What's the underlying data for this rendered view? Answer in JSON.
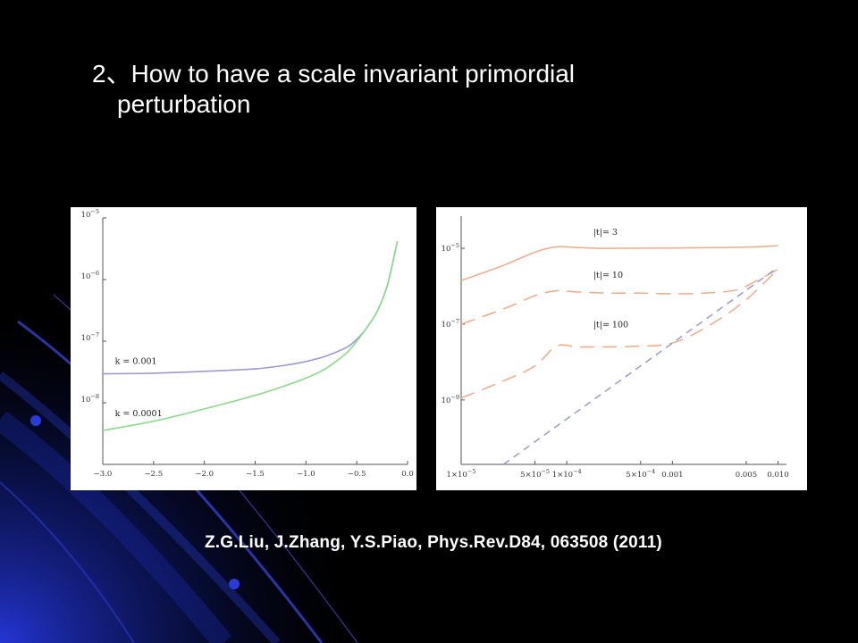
{
  "slide": {
    "title_line1": "2、How to have a scale invariant primordial",
    "title_line2": "perturbation",
    "reference": "Z.G.Liu, J.Zhang, Y.S.Piao, Phys.Rev.D84, 063508 (2011)"
  },
  "colors": {
    "background": "#000000",
    "decor_blue": "#1f2fd8",
    "text": "#ffffff"
  },
  "chart_data": [
    {
      "type": "line",
      "title": "",
      "xlabel": "",
      "ylabel": "",
      "xlim": [
        -3.0,
        0.0
      ],
      "ylim_log10": [
        -9.0,
        -5.0
      ],
      "y_scale": "log",
      "x_ticks": [
        -3.0,
        -2.5,
        -2.0,
        -1.5,
        -1.0,
        -0.5,
        0.0
      ],
      "x_tick_labels": [
        "−3.0",
        "−2.5",
        "−2.0",
        "−1.5",
        "−1.0",
        "−0.5",
        "0.0"
      ],
      "y_ticks_log10": [
        -8,
        -7,
        -6,
        -5
      ],
      "y_tick_labels": [
        "10",
        "10",
        "10",
        "10"
      ],
      "y_tick_exponents": [
        "−8",
        "−7",
        "−6",
        "−5"
      ],
      "series": [
        {
          "name": "k = 0.001",
          "color": "#9a9ad0",
          "dash": "solid",
          "x": [
            -3.0,
            -2.5,
            -2.0,
            -1.5,
            -1.2,
            -1.0,
            -0.8,
            -0.6,
            -0.5,
            -0.4,
            -0.3,
            -0.2,
            -0.1
          ],
          "y_log10": [
            -7.53,
            -7.52,
            -7.49,
            -7.45,
            -7.39,
            -7.33,
            -7.24,
            -7.1,
            -6.97,
            -6.78,
            -6.52,
            -6.1,
            -5.38
          ]
        },
        {
          "name": "k = 0.0001",
          "color": "#88dd88",
          "dash": "solid",
          "x": [
            -3.0,
            -2.5,
            -2.0,
            -1.5,
            -1.2,
            -1.0,
            -0.8,
            -0.6,
            -0.5,
            -0.4,
            -0.3,
            -0.2,
            -0.1
          ],
          "y_log10": [
            -8.45,
            -8.3,
            -8.1,
            -7.88,
            -7.72,
            -7.6,
            -7.44,
            -7.19,
            -7.0,
            -6.78,
            -6.52,
            -6.1,
            -5.38
          ]
        }
      ],
      "annotations": [
        {
          "text": "k = 0.001",
          "x": -2.88,
          "y_log10": -7.37
        },
        {
          "text": "k = 0.0001",
          "x": -2.88,
          "y_log10": -8.22
        }
      ]
    },
    {
      "type": "line",
      "title": "",
      "xlabel": "",
      "ylabel": "",
      "x_scale": "log",
      "xlim_log10": [
        -5.0,
        -1.92
      ],
      "ylim_log10": [
        -10.7,
        -4.15
      ],
      "y_scale": "log",
      "x_ticks_log10": [
        -5.0,
        -4.301,
        -4.0,
        -3.301,
        -3.0,
        -2.301,
        -2.0
      ],
      "x_tick_labels": [
        "1×10",
        "5×10",
        "1×10",
        "5×10",
        "0.001",
        "0.005",
        "0.010"
      ],
      "x_tick_exponents": [
        "−5",
        "−5",
        "−4",
        "−4",
        "",
        "",
        ""
      ],
      "y_ticks_log10": [
        -9,
        -7,
        -5
      ],
      "y_tick_labels": [
        "10",
        "10",
        "10"
      ],
      "y_tick_exponents": [
        "−9",
        "−7",
        "−5"
      ],
      "series": [
        {
          "name": "|t| = 3",
          "color": "#f5a882",
          "dash": "solid",
          "x_log10": [
            -5.0,
            -4.6,
            -4.3,
            -4.1,
            -3.9,
            -3.6,
            -3.0,
            -2.5,
            -2.2,
            -2.0
          ],
          "y_log10": [
            -5.85,
            -5.45,
            -5.1,
            -4.96,
            -4.98,
            -5.0,
            -4.99,
            -4.98,
            -4.96,
            -4.93
          ]
        },
        {
          "name": "|t| = 10",
          "color": "#f5a882",
          "dash": "long",
          "x_log10": [
            -5.0,
            -4.6,
            -4.3,
            -4.1,
            -3.9,
            -3.6,
            -3.3,
            -3.0,
            -2.7,
            -2.4,
            -2.2,
            -2.0
          ],
          "y_log10": [
            -7.0,
            -6.6,
            -6.25,
            -6.12,
            -6.15,
            -6.18,
            -6.18,
            -6.2,
            -6.18,
            -6.1,
            -5.85,
            -5.55
          ]
        },
        {
          "name": "|t| = 100",
          "color": "#f5a882",
          "dash": "long",
          "x_log10": [
            -5.0,
            -4.6,
            -4.3,
            -4.1,
            -3.9,
            -3.6,
            -3.3,
            -3.1,
            -2.9,
            -2.6,
            -2.3,
            -2.0
          ],
          "y_log10": [
            -8.95,
            -8.5,
            -8.1,
            -7.58,
            -7.6,
            -7.6,
            -7.58,
            -7.55,
            -7.4,
            -6.95,
            -6.35,
            -5.55
          ]
        },
        {
          "name": "",
          "color": "#9a9ad0",
          "dash": "dash",
          "x_log10": [
            -4.6,
            -2.0
          ],
          "y_log10": [
            -10.7,
            -5.5
          ]
        }
      ],
      "annotations": [
        {
          "text": "|t|= 3",
          "x_log10": -3.75,
          "y_log10": -4.65
        },
        {
          "text": "|t|= 10",
          "x_log10": -3.75,
          "y_log10": -5.78
        },
        {
          "text": "|t|= 100",
          "x_log10": -3.75,
          "y_log10": -7.08
        }
      ]
    }
  ]
}
